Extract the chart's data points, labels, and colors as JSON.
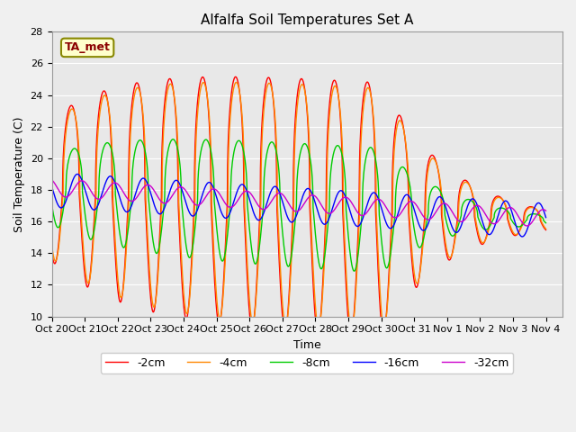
{
  "title": "Alfalfa Soil Temperatures Set A",
  "xlabel": "Time",
  "ylabel": "Soil Temperature (C)",
  "ylim": [
    10,
    28
  ],
  "annotation_label": "TA_met",
  "legend_entries": [
    "-2cm",
    "-4cm",
    "-8cm",
    "-16cm",
    "-32cm"
  ],
  "line_colors": [
    "#ff0000",
    "#ff8800",
    "#00cc00",
    "#0000ff",
    "#cc00cc"
  ],
  "tick_labels": [
    "Oct 20",
    "Oct 21",
    "Oct 22",
    "Oct 23",
    "Oct 24",
    "Oct 25",
    "Oct 26",
    "Oct 27",
    "Oct 28",
    "Oct 29",
    "Oct 30",
    "Oct 31",
    "Nov 1",
    "Nov 2",
    "Nov 3",
    "Nov 4"
  ],
  "yticks": [
    10,
    12,
    14,
    16,
    18,
    20,
    22,
    24,
    26,
    28
  ],
  "fig_width": 6.4,
  "fig_height": 4.8,
  "dpi": 100
}
